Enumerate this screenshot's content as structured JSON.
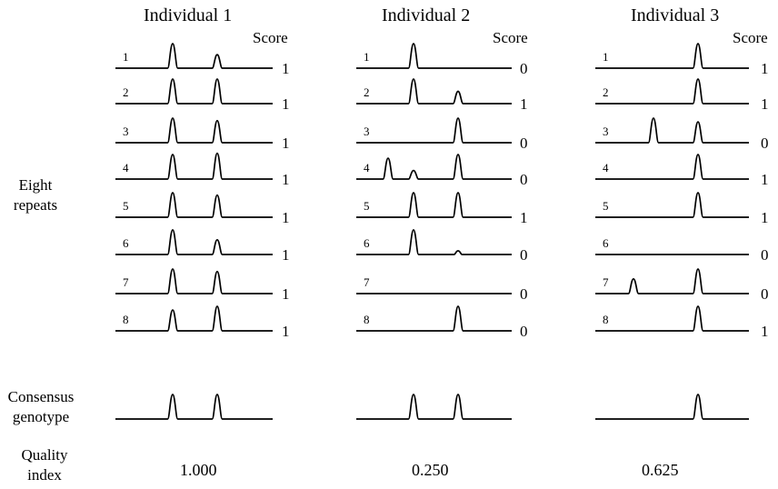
{
  "labels": {
    "score": "Score",
    "eight_repeats_line1": "Eight",
    "eight_repeats_line2": "repeats",
    "consensus_line1": "Consensus",
    "consensus_line2": "genotype",
    "quality_line1": "Quality",
    "quality_line2": "index"
  },
  "individuals": [
    {
      "title": "Individual 1",
      "quality_index": "1.000",
      "repeats": [
        {
          "label": "1",
          "score": "1",
          "peaks": [
            {
              "pos": 1,
              "h": 1.0
            },
            {
              "pos": 2,
              "h": 0.55
            }
          ]
        },
        {
          "label": "2",
          "score": "1",
          "peaks": [
            {
              "pos": 1,
              "h": 1.0
            },
            {
              "pos": 2,
              "h": 1.0
            }
          ]
        },
        {
          "label": "3",
          "score": "1",
          "peaks": [
            {
              "pos": 1,
              "h": 1.0
            },
            {
              "pos": 2,
              "h": 0.9
            }
          ]
        },
        {
          "label": "4",
          "score": "1",
          "peaks": [
            {
              "pos": 1,
              "h": 1.0
            },
            {
              "pos": 2,
              "h": 1.05
            }
          ]
        },
        {
          "label": "5",
          "score": "1",
          "peaks": [
            {
              "pos": 1,
              "h": 1.0
            },
            {
              "pos": 2,
              "h": 0.9
            }
          ]
        },
        {
          "label": "6",
          "score": "1",
          "peaks": [
            {
              "pos": 1,
              "h": 1.0
            },
            {
              "pos": 2,
              "h": 0.6
            }
          ]
        },
        {
          "label": "7",
          "score": "1",
          "peaks": [
            {
              "pos": 1,
              "h": 1.0
            },
            {
              "pos": 2,
              "h": 0.9
            }
          ]
        },
        {
          "label": "8",
          "score": "1",
          "peaks": [
            {
              "pos": 1,
              "h": 0.85
            },
            {
              "pos": 2,
              "h": 1.0
            }
          ]
        }
      ],
      "consensus_peaks": [
        {
          "pos": 1,
          "h": 1.0
        },
        {
          "pos": 2,
          "h": 1.0
        }
      ]
    },
    {
      "title": "Individual 2",
      "quality_index": "0.250",
      "repeats": [
        {
          "label": "1",
          "score": "0",
          "peaks": [
            {
              "pos": 1,
              "h": 1.0
            }
          ]
        },
        {
          "label": "2",
          "score": "1",
          "peaks": [
            {
              "pos": 1,
              "h": 1.0
            },
            {
              "pos": 2,
              "h": 0.5
            }
          ]
        },
        {
          "label": "3",
          "score": "0",
          "peaks": [
            {
              "pos": 2,
              "h": 1.0
            }
          ]
        },
        {
          "label": "4",
          "score": "0",
          "peaks": [
            {
              "pos": 0,
              "h": 0.85
            },
            {
              "pos": 1,
              "h": 0.35
            },
            {
              "pos": 2,
              "h": 1.0
            }
          ]
        },
        {
          "label": "5",
          "score": "1",
          "peaks": [
            {
              "pos": 1,
              "h": 1.0
            },
            {
              "pos": 2,
              "h": 1.0
            }
          ]
        },
        {
          "label": "6",
          "score": "0",
          "peaks": [
            {
              "pos": 1,
              "h": 1.0
            },
            {
              "pos": 2,
              "h": 0.15
            }
          ]
        },
        {
          "label": "7",
          "score": "0",
          "peaks": []
        },
        {
          "label": "8",
          "score": "0",
          "peaks": [
            {
              "pos": 2,
              "h": 1.0
            }
          ]
        }
      ],
      "consensus_peaks": [
        {
          "pos": 1,
          "h": 1.0
        },
        {
          "pos": 2,
          "h": 1.0
        }
      ]
    },
    {
      "title": "Individual 3",
      "quality_index": "0.625",
      "repeats": [
        {
          "label": "1",
          "score": "1",
          "peaks": [
            {
              "pos": 2,
              "h": 1.0
            }
          ]
        },
        {
          "label": "2",
          "score": "1",
          "peaks": [
            {
              "pos": 2,
              "h": 1.0
            }
          ]
        },
        {
          "label": "3",
          "score": "0",
          "peaks": [
            {
              "pos": 1,
              "h": 1.0
            },
            {
              "pos": 2,
              "h": 0.85
            }
          ]
        },
        {
          "label": "4",
          "score": "1",
          "peaks": [
            {
              "pos": 2,
              "h": 1.0
            }
          ]
        },
        {
          "label": "5",
          "score": "1",
          "peaks": [
            {
              "pos": 2,
              "h": 1.0
            }
          ]
        },
        {
          "label": "6",
          "score": "0",
          "peaks": []
        },
        {
          "label": "7",
          "score": "0",
          "peaks": [
            {
              "pos": 0,
              "h": 0.6
            },
            {
              "pos": 2,
              "h": 1.0
            }
          ]
        },
        {
          "label": "8",
          "score": "1",
          "peaks": [
            {
              "pos": 2,
              "h": 1.0
            }
          ]
        }
      ],
      "consensus_peaks": [
        {
          "pos": 2,
          "h": 1.0
        }
      ]
    }
  ]
}
